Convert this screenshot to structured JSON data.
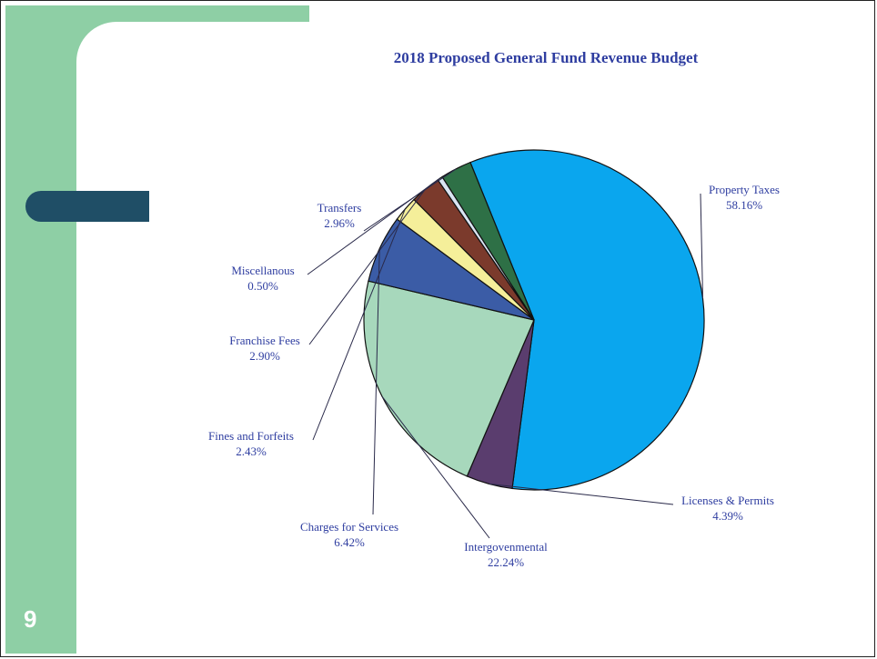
{
  "page": {
    "number": "9"
  },
  "chart_data": {
    "type": "pie",
    "title": "2018 Proposed General Fund Revenue Budget",
    "slices": [
      {
        "name": "Property Taxes",
        "label": "Property Taxes",
        "value": 58.16,
        "pct_label": "58.16%",
        "color": "#0aa6ee"
      },
      {
        "name": "Licenses & Permits",
        "label": "Licenses & Permits",
        "value": 4.39,
        "pct_label": "4.39%",
        "color": "#5a3d6e"
      },
      {
        "name": "Intergovenmental",
        "label": "Intergovenmental",
        "value": 22.24,
        "pct_label": "22.24%",
        "color": "#a7d8bc"
      },
      {
        "name": "Charges for Services",
        "label": "Charges for Services",
        "value": 6.42,
        "pct_label": "6.42%",
        "color": "#3b5ca6"
      },
      {
        "name": "Fines and Forfeits",
        "label": "Fines and Forfeits",
        "value": 2.43,
        "pct_label": "2.43%",
        "color": "#f5ef9a"
      },
      {
        "name": "Franchise Fees",
        "label": "Franchise Fees",
        "value": 2.9,
        "pct_label": "2.90%",
        "color": "#7b3a2c"
      },
      {
        "name": "Miscellanous",
        "label": "Miscellanous",
        "value": 0.5,
        "pct_label": "0.50%",
        "color": "#d9e4f2"
      },
      {
        "name": "Transfers",
        "label": "Transfers",
        "value": 2.96,
        "pct_label": "2.96%",
        "color": "#2e7046"
      }
    ]
  }
}
